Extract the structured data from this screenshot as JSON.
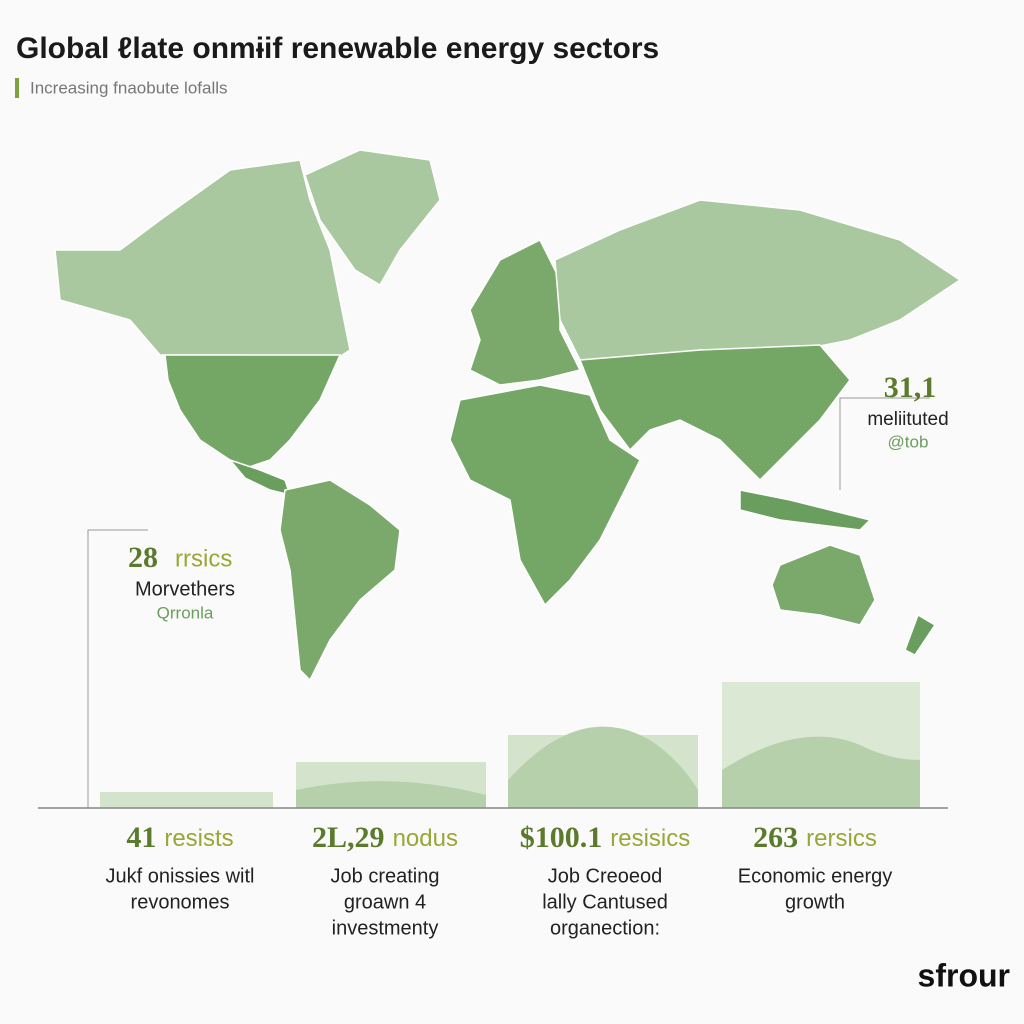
{
  "header": {
    "title": "Global ℓlate onmɨif renewable energy sectors",
    "subtitle": "Increasing fnaobute lofalls"
  },
  "callouts": [
    {
      "number": "28",
      "unit": "rrsics",
      "label": "Morvethers",
      "note": "Qrronla"
    },
    {
      "number": "31,1",
      "label": "meliituted",
      "note": "@tob"
    }
  ],
  "stats": [
    {
      "number": "41",
      "unit": "resists",
      "lines": [
        "Jukf onissies witl",
        "revonomes"
      ]
    },
    {
      "number": "2L,29",
      "unit": "nodus",
      "lines": [
        "Job creating",
        "groawn 4",
        "investmenty"
      ]
    },
    {
      "number": "$100.1",
      "unit": "resisics",
      "lines": [
        "Job Creoeod",
        "lally Cantused",
        "organection:"
      ]
    },
    {
      "number": "263",
      "unit": "rersics",
      "lines": [
        "Economic energy",
        "growth"
      ]
    }
  ],
  "logo": "sfrour"
}
